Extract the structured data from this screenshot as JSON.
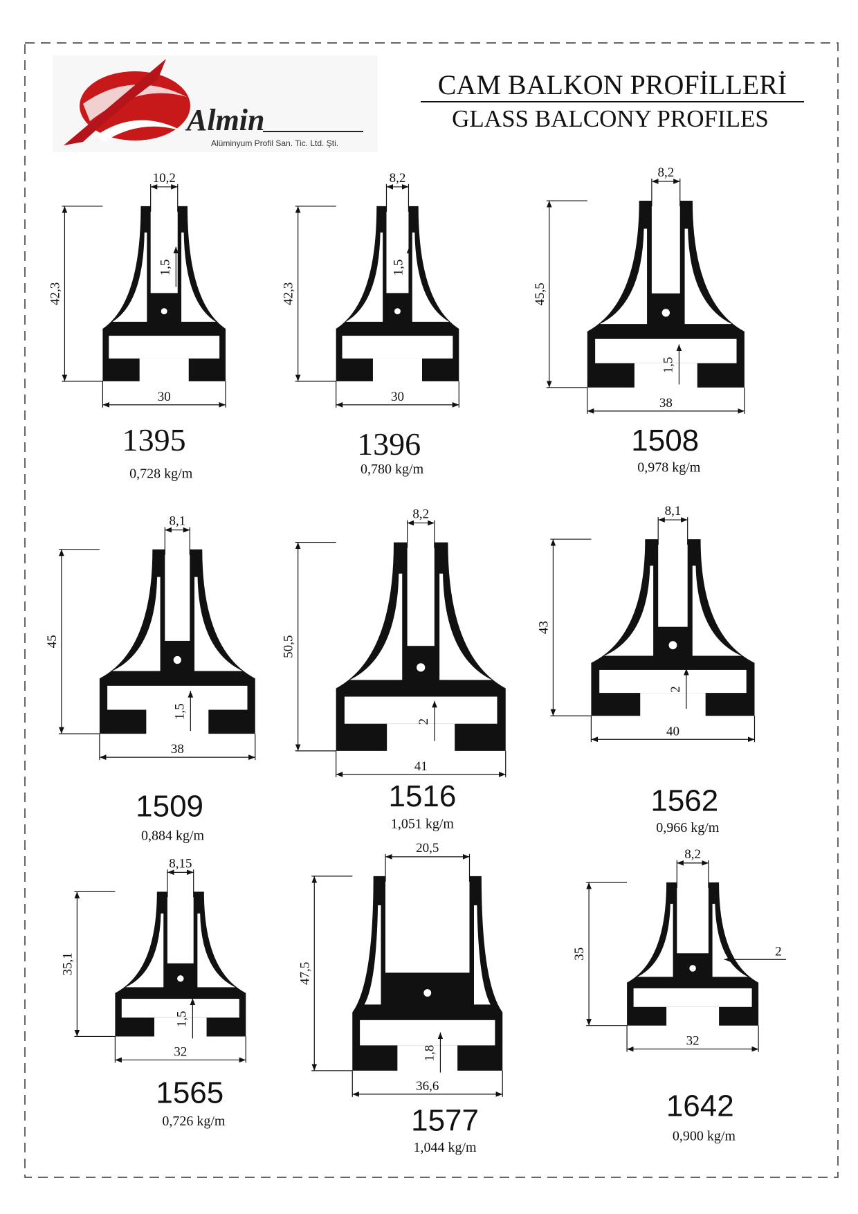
{
  "header": {
    "company_name": "Almin",
    "company_subtitle": "Alüminyum Profil San. Tic. Ltd. Şti.",
    "title": "CAM BALKON PROFİLLERİ",
    "subtitle": "GLASS BALCONY PROFILES"
  },
  "profiles": [
    {
      "code": "1395",
      "weight": "0,728 kg/m",
      "dimensions": {
        "opening": "10,2",
        "height": "42,3",
        "width": "30",
        "wall": "1,5"
      }
    },
    {
      "code": "1396",
      "weight": "0,780 kg/m",
      "dimensions": {
        "opening": "8,2",
        "height": "42,3",
        "width": "30",
        "wall": "1,5"
      }
    },
    {
      "code": "1508",
      "weight": "0,978 kg/m",
      "dimensions": {
        "opening": "8,2",
        "height": "45,5",
        "width": "38",
        "wall": "1,5"
      }
    },
    {
      "code": "1509",
      "weight": "0,884 kg/m",
      "dimensions": {
        "opening": "8,1",
        "height": "45",
        "width": "38",
        "wall": "1,5"
      }
    },
    {
      "code": "1516",
      "weight": "1,051 kg/m",
      "dimensions": {
        "opening": "8,2",
        "height": "50,5",
        "width": "41",
        "wall": "2"
      }
    },
    {
      "code": "1562",
      "weight": "0,966 kg/m",
      "dimensions": {
        "opening": "8,1",
        "height": "43",
        "width": "40",
        "wall": "2"
      }
    },
    {
      "code": "1565",
      "weight": "0,726 kg/m",
      "dimensions": {
        "opening": "8,15",
        "height": "35,1",
        "width": "32",
        "wall": "1,5"
      }
    },
    {
      "code": "1577",
      "weight": "1,044 kg/m",
      "dimensions": {
        "opening": "20,5",
        "height": "47,5",
        "width": "36,6",
        "wall": "1,8"
      }
    },
    {
      "code": "1642",
      "weight": "0,900 kg/m",
      "dimensions": {
        "opening": "8,2",
        "height": "35",
        "width": "32",
        "wall": "2"
      }
    }
  ]
}
